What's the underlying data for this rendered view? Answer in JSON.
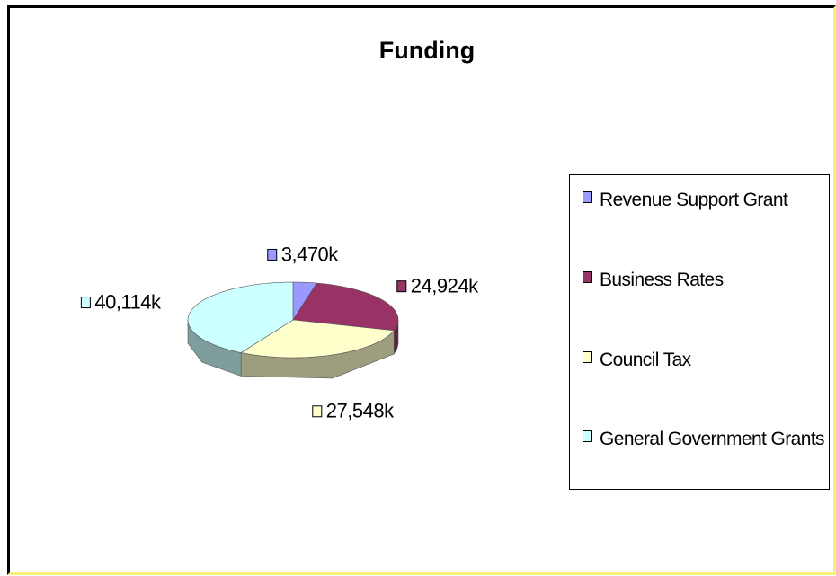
{
  "chart_data": {
    "type": "pie",
    "title": "Funding",
    "categories": [
      "Revenue Support Grant",
      "Business Rates",
      "Council Tax",
      "General Government Grants"
    ],
    "values": [
      3470,
      24924,
      27548,
      40114
    ],
    "value_labels": [
      "3,470k",
      "24,924k",
      "27,548k",
      "40,114k"
    ],
    "colors": [
      "#9999ff",
      "#993366",
      "#ffffcc",
      "#ccffff"
    ],
    "legend": "right"
  }
}
